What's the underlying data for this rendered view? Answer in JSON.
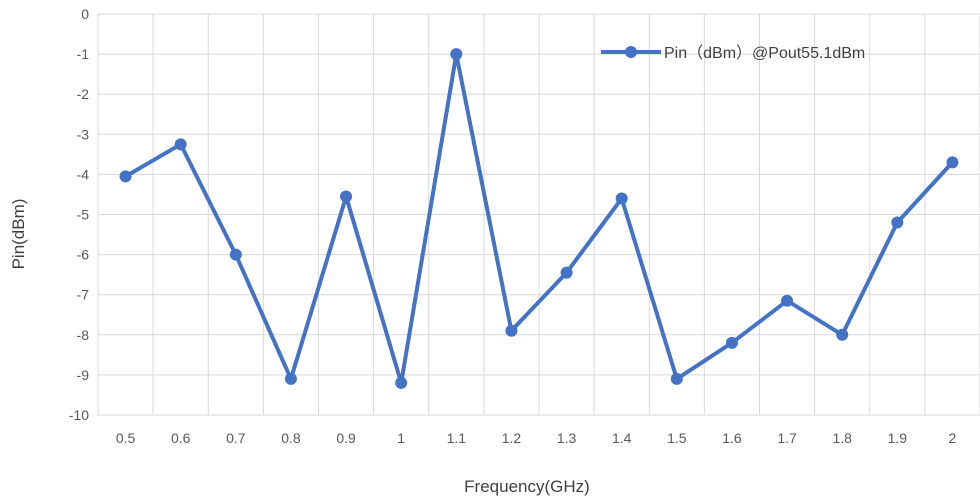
{
  "chart_data": {
    "type": "line",
    "title": "",
    "xlabel": "Frequency(GHz)",
    "ylabel": "Pin(dBm)",
    "categories": [
      "0.5",
      "0.6",
      "0.7",
      "0.8",
      "0.9",
      "1",
      "1.1",
      "1.2",
      "1.3",
      "1.4",
      "1.5",
      "1.6",
      "1.7",
      "1.8",
      "1.9",
      "2"
    ],
    "ylim": [
      -10,
      0
    ],
    "yticks": [
      "0",
      "-1",
      "-2",
      "-3",
      "-4",
      "-5",
      "-6",
      "-7",
      "-8",
      "-9",
      "-10"
    ],
    "grid": true,
    "legend_position": "top-right",
    "series": [
      {
        "name": "Pin（dBm）@Pout55.1dBm",
        "color": "#4472c4",
        "values": [
          -4.05,
          -3.25,
          -6.0,
          -9.1,
          -4.55,
          -9.2,
          -1.0,
          -7.9,
          -6.45,
          -4.6,
          -9.1,
          -8.2,
          -7.15,
          -8.0,
          -5.2,
          -3.7
        ]
      }
    ]
  }
}
